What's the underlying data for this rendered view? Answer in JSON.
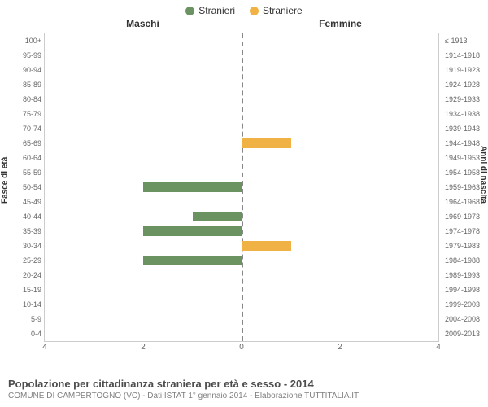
{
  "legend": {
    "male_label": "Stranieri",
    "female_label": "Straniere",
    "male_color": "#6b9362",
    "female_color": "#f0b245"
  },
  "headers": {
    "left": "Maschi",
    "right": "Femmine"
  },
  "axis_titles": {
    "left": "Fasce di età",
    "right": "Anni di nascita"
  },
  "xaxis": {
    "max": 4,
    "ticks": [
      4,
      2,
      0,
      2,
      4
    ]
  },
  "colors": {
    "background": "#ffffff",
    "border": "#cccccc",
    "midline": "#888888",
    "text": "#333333",
    "subtext": "#666666"
  },
  "footer": {
    "title": "Popolazione per cittadinanza straniera per età e sesso - 2014",
    "sub": "COMUNE DI CAMPERTOGNO (VC) - Dati ISTAT 1° gennaio 2014 - Elaborazione TUTTITALIA.IT"
  },
  "age_bands": [
    {
      "age": "100+",
      "birth": "≤ 1913",
      "m": 0,
      "f": 0
    },
    {
      "age": "95-99",
      "birth": "1914-1918",
      "m": 0,
      "f": 0
    },
    {
      "age": "90-94",
      "birth": "1919-1923",
      "m": 0,
      "f": 0
    },
    {
      "age": "85-89",
      "birth": "1924-1928",
      "m": 0,
      "f": 0
    },
    {
      "age": "80-84",
      "birth": "1929-1933",
      "m": 0,
      "f": 0
    },
    {
      "age": "75-79",
      "birth": "1934-1938",
      "m": 0,
      "f": 0
    },
    {
      "age": "70-74",
      "birth": "1939-1943",
      "m": 0,
      "f": 0
    },
    {
      "age": "65-69",
      "birth": "1944-1948",
      "m": 0,
      "f": 1
    },
    {
      "age": "60-64",
      "birth": "1949-1953",
      "m": 0,
      "f": 0
    },
    {
      "age": "55-59",
      "birth": "1954-1958",
      "m": 0,
      "f": 0
    },
    {
      "age": "50-54",
      "birth": "1959-1963",
      "m": 2,
      "f": 0
    },
    {
      "age": "45-49",
      "birth": "1964-1968",
      "m": 0,
      "f": 0
    },
    {
      "age": "40-44",
      "birth": "1969-1973",
      "m": 1,
      "f": 0
    },
    {
      "age": "35-39",
      "birth": "1974-1978",
      "m": 2,
      "f": 0
    },
    {
      "age": "30-34",
      "birth": "1979-1983",
      "m": 0,
      "f": 1
    },
    {
      "age": "25-29",
      "birth": "1984-1988",
      "m": 2,
      "f": 0
    },
    {
      "age": "20-24",
      "birth": "1989-1993",
      "m": 0,
      "f": 0
    },
    {
      "age": "15-19",
      "birth": "1994-1998",
      "m": 0,
      "f": 0
    },
    {
      "age": "10-14",
      "birth": "1999-2003",
      "m": 0,
      "f": 0
    },
    {
      "age": "5-9",
      "birth": "2004-2008",
      "m": 0,
      "f": 0
    },
    {
      "age": "0-4",
      "birth": "2009-2013",
      "m": 0,
      "f": 0
    }
  ]
}
